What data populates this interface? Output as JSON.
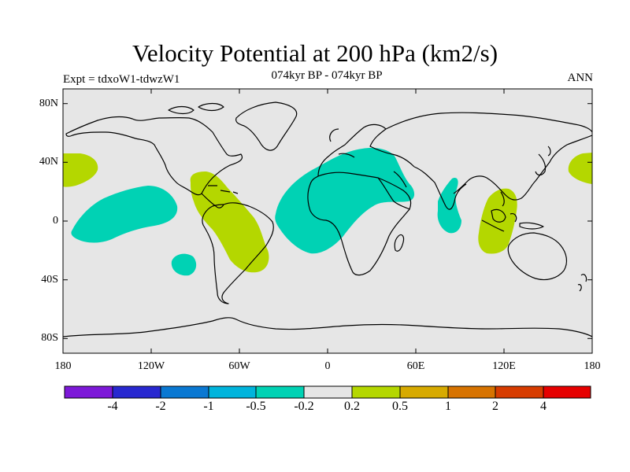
{
  "title": "Velocity Potential at 200 hPa (km2/s)",
  "subtitle": "074kyr BP - 074kyr BP",
  "left_label": "Expt = tdxoW1-tdwzW1",
  "right_label": "ANN",
  "map": {
    "projection": "cylindrical-equidistant",
    "lon_range": [
      -180,
      180
    ],
    "lat_range": [
      -90,
      90
    ],
    "background": "#e6e6e6",
    "y_ticks": [
      {
        "lat": 80,
        "label": "80N"
      },
      {
        "lat": 40,
        "label": "40N"
      },
      {
        "lat": 0,
        "label": "0"
      },
      {
        "lat": -40,
        "label": "40S"
      },
      {
        "lat": -80,
        "label": "80S"
      }
    ],
    "x_ticks": [
      {
        "lon": -180,
        "label": "180"
      },
      {
        "lon": -120,
        "label": "120W"
      },
      {
        "lon": -60,
        "label": "60W"
      },
      {
        "lon": 0,
        "label": "0"
      },
      {
        "lon": 60,
        "label": "60E"
      },
      {
        "lon": 120,
        "label": "120E"
      },
      {
        "lon": 180,
        "label": "180"
      }
    ]
  },
  "colorbar": {
    "colors": [
      "#7d18d8",
      "#2828d0",
      "#0a78d2",
      "#00b4dc",
      "#00d2b4",
      "#e6e6e6",
      "#b4d700",
      "#d7aa00",
      "#d77300",
      "#d73c00",
      "#e60000"
    ],
    "labels": [
      "-4",
      "-2",
      "-1",
      "-0.5",
      "-0.2",
      "0.2",
      "0.5",
      "1",
      "2",
      "4"
    ]
  },
  "anomaly_regions": [
    {
      "name": "central-pacific-negative",
      "category": "-0.5 to -0.2",
      "color": "#00d2b4"
    },
    {
      "name": "south-pacific-negative",
      "category": "-0.5 to -0.2",
      "color": "#00d2b4"
    },
    {
      "name": "africa-eurasia-negative",
      "category": "-0.5 to -0.2",
      "color": "#00d2b4"
    },
    {
      "name": "india-negative",
      "category": "-0.5 to -0.2",
      "color": "#00d2b4"
    },
    {
      "name": "south-america-positive",
      "category": "0.2 to 0.5",
      "color": "#b4d700"
    },
    {
      "name": "maritime-continent-positive",
      "category": "0.2 to 0.5",
      "color": "#b4d700"
    },
    {
      "name": "dateline-west-positive",
      "category": "0.2 to 0.5",
      "color": "#b4d700"
    },
    {
      "name": "dateline-east-positive",
      "category": "0.2 to 0.5",
      "color": "#b4d700"
    }
  ]
}
